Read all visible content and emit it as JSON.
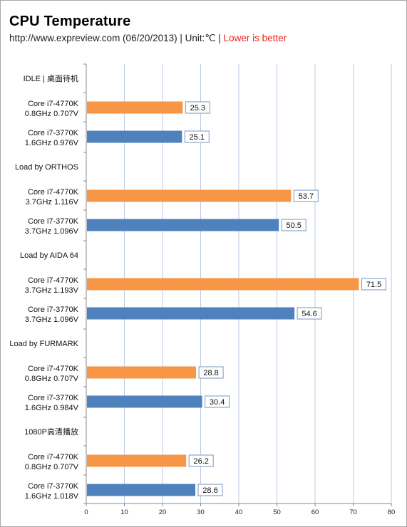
{
  "header": {
    "title": "CPU  Temperature",
    "subtitle_prefix": "http://www.expreview.com (06/20/2013)  | Unit:℃ |",
    "subtitle_highlight": "Lower is better"
  },
  "colors": {
    "orange": "#f79646",
    "blue": "#4f81bd",
    "grid": "#b9c9e4",
    "axis": "#8a8a8a",
    "highlight_text": "#e8271c"
  },
  "chart_data": {
    "type": "bar",
    "orientation": "horizontal",
    "title": "CPU  Temperature",
    "subtitle": "http://www.expreview.com (06/20/2013)  | Unit:℃ | Lower is better",
    "xlabel": "",
    "ylabel": "",
    "xlim": [
      0,
      80
    ],
    "x_ticks": [
      0,
      10,
      20,
      30,
      40,
      50,
      60,
      70,
      80
    ],
    "grid": true,
    "groups": [
      {
        "label": "IDLE | 桌面待机",
        "bars": [
          {
            "label_line1": "Core i7-4770K",
            "label_line2": "0.8GHz 0.707V",
            "value": 25.3,
            "color": "orange"
          },
          {
            "label_line1": "Core i7-3770K",
            "label_line2": "1.6GHz 0.976V",
            "value": 25.1,
            "color": "blue"
          }
        ]
      },
      {
        "label": "Load by ORTHOS",
        "bars": [
          {
            "label_line1": "Core i7-4770K",
            "label_line2": "3.7GHz 1.116V",
            "value": 53.7,
            "color": "orange"
          },
          {
            "label_line1": "Core i7-3770K",
            "label_line2": "3.7GHz 1.096V",
            "value": 50.5,
            "color": "blue"
          }
        ]
      },
      {
        "label": "Load by AIDA 64",
        "bars": [
          {
            "label_line1": "Core i7-4770K",
            "label_line2": "3.7GHz 1.193V",
            "value": 71.5,
            "color": "orange"
          },
          {
            "label_line1": "Core i7-3770K",
            "label_line2": "3.7GHz 1.096V",
            "value": 54.6,
            "color": "blue"
          }
        ]
      },
      {
        "label": "Load by FURMARK",
        "bars": [
          {
            "label_line1": "Core i7-4770K",
            "label_line2": "0.8GHz 0.707V",
            "value": 28.8,
            "color": "orange"
          },
          {
            "label_line1": "Core i7-3770K",
            "label_line2": "1.6GHz 0.984V",
            "value": 30.4,
            "color": "blue"
          }
        ]
      },
      {
        "label": "1080P高清播放",
        "bars": [
          {
            "label_line1": "Core i7-4770K",
            "label_line2": "0.8GHz 0.707V",
            "value": 26.2,
            "color": "orange"
          },
          {
            "label_line1": "Core i7-3770K",
            "label_line2": "1.6GHz 1.018V",
            "value": 28.6,
            "color": "blue"
          }
        ]
      }
    ]
  }
}
